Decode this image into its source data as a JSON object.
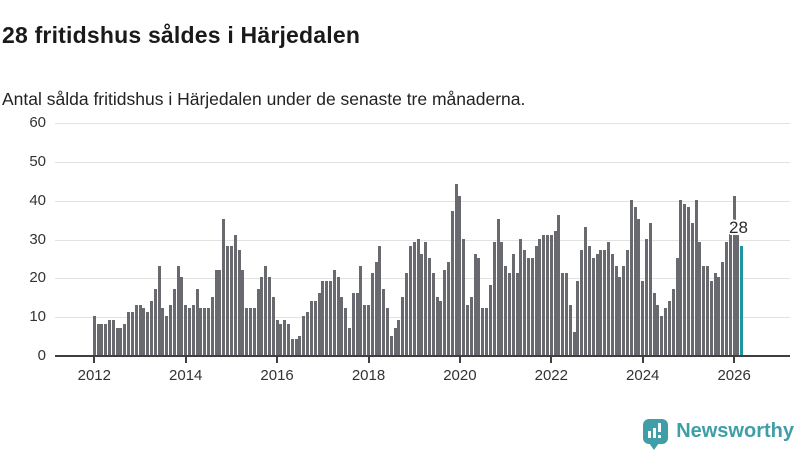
{
  "header": {
    "title": "28 fritidshus såldes i Härjedalen",
    "subtitle": "Antal sålda fritidshus i Härjedalen under de senaste tre månaderna."
  },
  "chart": {
    "annotation": {
      "text": "28"
    }
  },
  "chart_data": {
    "type": "bar",
    "title": "28 fritidshus såldes i Härjedalen",
    "description": "Antal sålda fritidshus i Härjedalen under de senaste tre månaderna.",
    "frequency": "monthly",
    "x_start": "2012-01",
    "x_end": "2026-03",
    "ylim": [
      0,
      60
    ],
    "yticks": [
      0,
      10,
      20,
      30,
      40,
      50,
      60
    ],
    "xtick_years": [
      2012,
      2014,
      2016,
      2018,
      2020,
      2022,
      2024,
      2026
    ],
    "grid": "horizontal",
    "legend": "none",
    "values": [
      10,
      8,
      8,
      8,
      9,
      9,
      7,
      7,
      8,
      11,
      11,
      13,
      13,
      12,
      11,
      14,
      17,
      23,
      12,
      10,
      13,
      17,
      23,
      20,
      13,
      12,
      13,
      17,
      12,
      12,
      12,
      15,
      22,
      22,
      35,
      28,
      28,
      31,
      27,
      22,
      12,
      12,
      12,
      17,
      20,
      23,
      20,
      15,
      9,
      8,
      9,
      8,
      4,
      4,
      5,
      10,
      11,
      14,
      14,
      16,
      19,
      19,
      19,
      22,
      20,
      15,
      12,
      7,
      16,
      16,
      23,
      13,
      13,
      21,
      24,
      28,
      17,
      12,
      5,
      7,
      9,
      15,
      21,
      28,
      29,
      30,
      26,
      29,
      25,
      21,
      15,
      14,
      22,
      24,
      37,
      44,
      41,
      30,
      13,
      15,
      26,
      25,
      12,
      12,
      18,
      29,
      35,
      29,
      23,
      21,
      26,
      21,
      30,
      27,
      25,
      25,
      28,
      30,
      31,
      31,
      31,
      32,
      36,
      21,
      21,
      13,
      6,
      19,
      27,
      33,
      28,
      25,
      26,
      27,
      27,
      29,
      26,
      23,
      20,
      23,
      27,
      40,
      38,
      35,
      19,
      30,
      34,
      16,
      13,
      10,
      12,
      14,
      17,
      25,
      40,
      39,
      38,
      34,
      40,
      29,
      23,
      23,
      19,
      21,
      20,
      24,
      29,
      32,
      41,
      31,
      28
    ],
    "highlight": {
      "index": 170,
      "month": "2026-03",
      "value": 28,
      "label": "28"
    },
    "colors": {
      "bar": "#696970",
      "highlight": "#1b96a0",
      "grid": "#e2e2e2",
      "axis": "#3f3f3f"
    }
  },
  "brand": {
    "name": "Newsworthy"
  }
}
